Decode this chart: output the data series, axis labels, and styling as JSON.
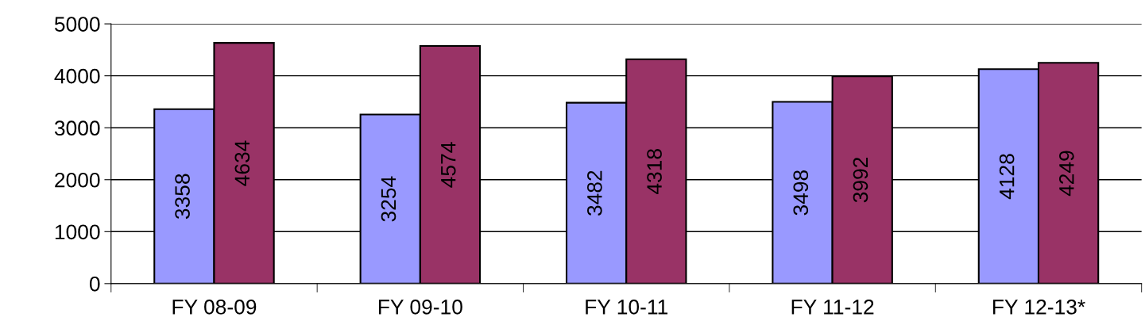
{
  "chart_data": {
    "type": "bar",
    "categories": [
      "FY 08-09",
      "FY 09-10",
      "FY 10-11",
      "FY 11-12",
      "FY 12-13*"
    ],
    "series": [
      {
        "color": "#9999ff",
        "values": [
          3358,
          3254,
          3482,
          3498,
          4128
        ]
      },
      {
        "color": "#993366",
        "values": [
          4634,
          4574,
          4318,
          3992,
          4249
        ]
      }
    ],
    "ylim": [
      0,
      5000
    ],
    "yticks": [
      0,
      1000,
      2000,
      3000,
      4000,
      5000
    ],
    "grid": "y",
    "data_labels": true,
    "legend": false
  }
}
